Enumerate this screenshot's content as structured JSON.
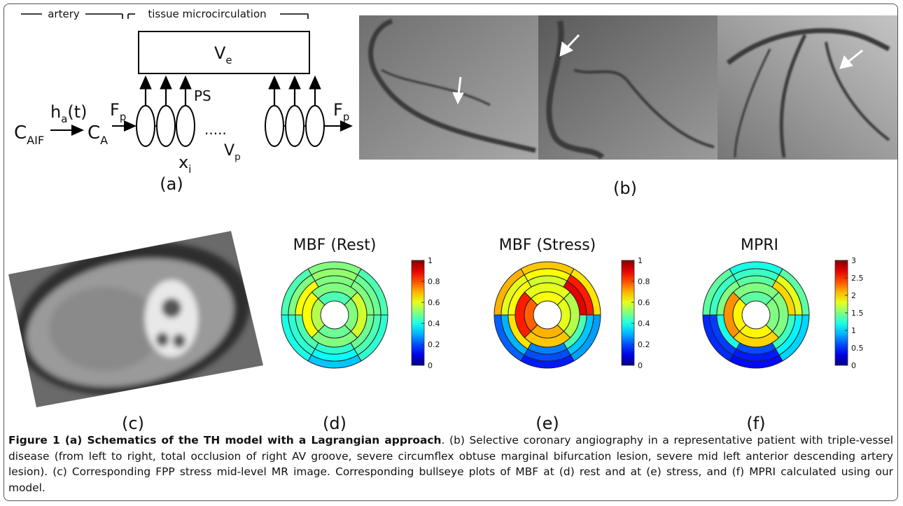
{
  "diagram": {
    "artery": "artery",
    "tissue": "tissue microcirculation",
    "ve": {
      "main": "V",
      "sub": "e"
    },
    "ps": "PS",
    "c_aif": {
      "main": "C",
      "sub": "AIF"
    },
    "ha": {
      "main": "h",
      "sub": "a",
      "tail": "(t)"
    },
    "ca": {
      "main": "C",
      "sub": "A"
    },
    "fp_in": {
      "main": "F",
      "sub": "p"
    },
    "xi": {
      "main": "x",
      "sub": "i"
    },
    "vp": {
      "main": "V",
      "sub": "p"
    },
    "fp_out": {
      "main": "F",
      "sub": "p"
    },
    "label": "(a)"
  },
  "angiography": {
    "label": "(b)"
  },
  "mr_image": {
    "label": "(c)"
  },
  "bullseyes": [
    {
      "title": "MBF (Rest)",
      "label": "(d)",
      "clim": [
        0,
        1
      ],
      "ticks": [
        0,
        0.2,
        0.4,
        0.6,
        0.8,
        1
      ],
      "outer": [
        [
          0.5,
          0.52,
          0.5
        ],
        [
          0.45,
          0.48,
          0.5
        ],
        [
          0.42,
          0.45,
          0.48
        ],
        [
          0.32,
          0.38,
          0.42
        ],
        [
          0.4,
          0.42,
          0.45
        ],
        [
          0.45,
          0.5,
          0.62
        ]
      ],
      "inner": [
        [
          0.5,
          0.45
        ],
        [
          0.58,
          0.5
        ],
        [
          0.5,
          0.48
        ],
        [
          0.62,
          0.55
        ]
      ]
    },
    {
      "title": "MBF (Stress)",
      "label": "(e)",
      "clim": [
        0,
        1
      ],
      "ticks": [
        0,
        0.2,
        0.4,
        0.6,
        0.8,
        1
      ],
      "outer": [
        [
          0.68,
          0.62,
          0.58
        ],
        [
          0.65,
          0.85,
          0.9
        ],
        [
          0.28,
          0.32,
          0.45
        ],
        [
          0.15,
          0.2,
          0.25
        ],
        [
          0.22,
          0.3,
          0.65
        ],
        [
          0.7,
          0.6,
          0.62
        ]
      ],
      "inner": [
        [
          0.6,
          0.62
        ],
        [
          0.55,
          0.6
        ],
        [
          0.68,
          0.7
        ],
        [
          0.85,
          0.78
        ]
      ]
    },
    {
      "title": "MPRI",
      "label": "(f)",
      "clim": [
        0,
        3
      ],
      "ticks": [
        0,
        0.5,
        1,
        1.5,
        2,
        2.5,
        3
      ],
      "outer": [
        [
          1.2,
          1.3,
          1.4
        ],
        [
          1.4,
          1.8,
          2.0
        ],
        [
          1.0,
          1.1,
          1.3
        ],
        [
          0.4,
          0.45,
          0.6
        ],
        [
          0.5,
          0.55,
          1.2
        ],
        [
          1.4,
          1.3,
          1.5
        ]
      ],
      "inner": [
        [
          1.5,
          1.4
        ],
        [
          1.5,
          1.5
        ],
        [
          2.0,
          1.9
        ],
        [
          2.2,
          1.9
        ]
      ]
    }
  ],
  "caption": {
    "bold": "Figure 1 (a) Schematics of the TH model with a Lagrangian approach",
    "text": ". (b) Selective coronary angiography in a representative patient with triple-vessel disease (from left to right, total occlusion of right AV groove, severe circumflex obtuse marginal bifurcation lesion, severe mid left anterior descending artery lesion). (c) Corresponding FPP stress mid-level MR image. Corresponding bullseye plots of MBF at (d) rest and at (e) stress, and (f) MPRI calculated using our model."
  }
}
